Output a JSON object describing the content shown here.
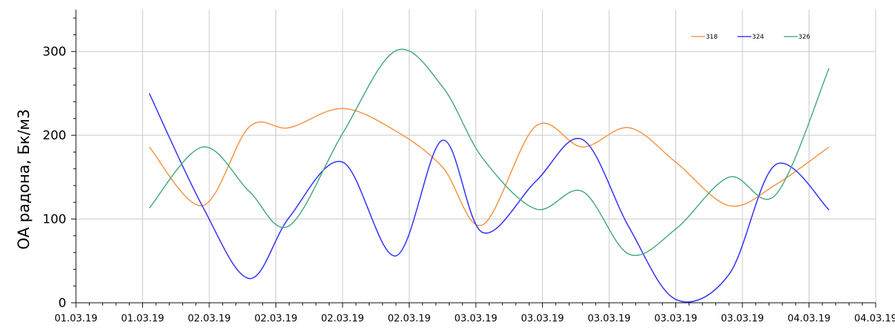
{
  "chart_data": {
    "type": "line",
    "title": "",
    "xlabel": "",
    "ylabel": "ОА радона, Бк/м3",
    "ylim": [
      0,
      350
    ],
    "yticks": [
      0,
      100,
      200,
      300
    ],
    "xlim": [
      0,
      12
    ],
    "x_tick_labels": [
      "01.03.19",
      "01.03.19",
      "02.03.19",
      "02.03.19",
      "02.03.19",
      "02.03.19",
      "03.03.19",
      "03.03.19",
      "03.03.19",
      "03.03.19",
      "03.03.19",
      "04.03.19",
      "04.03.19"
    ],
    "grid": true,
    "legend_position": "top-right",
    "series": [
      {
        "name": "318",
        "color": "#f79646",
        "points": [
          [
            1.1,
            186
          ],
          [
            1.9,
            116
          ],
          [
            2.6,
            210
          ],
          [
            3.2,
            209
          ],
          [
            4.0,
            232
          ],
          [
            4.8,
            205
          ],
          [
            5.5,
            162
          ],
          [
            6.1,
            93
          ],
          [
            6.9,
            211
          ],
          [
            7.6,
            186
          ],
          [
            8.3,
            209
          ],
          [
            9.0,
            168
          ],
          [
            9.8,
            116
          ],
          [
            10.5,
            141
          ],
          [
            11.3,
            186
          ]
        ]
      },
      {
        "name": "324",
        "color": "#3333ff",
        "points": [
          [
            1.1,
            250
          ],
          [
            1.9,
            115
          ],
          [
            2.6,
            29
          ],
          [
            3.2,
            102
          ],
          [
            4.0,
            168
          ],
          [
            4.8,
            56
          ],
          [
            5.5,
            194
          ],
          [
            6.1,
            84
          ],
          [
            6.9,
            145
          ],
          [
            7.6,
            195
          ],
          [
            8.3,
            90
          ],
          [
            9.0,
            4
          ],
          [
            9.8,
            34
          ],
          [
            10.5,
            165
          ],
          [
            11.3,
            111
          ]
        ]
      },
      {
        "name": "326",
        "color": "#4bab82",
        "points": [
          [
            1.1,
            113
          ],
          [
            1.9,
            186
          ],
          [
            2.6,
            133
          ],
          [
            3.2,
            92
          ],
          [
            4.0,
            202
          ],
          [
            4.8,
            301
          ],
          [
            5.5,
            258
          ],
          [
            6.1,
            173
          ],
          [
            6.9,
            112
          ],
          [
            7.6,
            133
          ],
          [
            8.3,
            58
          ],
          [
            9.0,
            88
          ],
          [
            9.8,
            150
          ],
          [
            10.5,
            129
          ],
          [
            11.3,
            280
          ]
        ]
      }
    ]
  }
}
